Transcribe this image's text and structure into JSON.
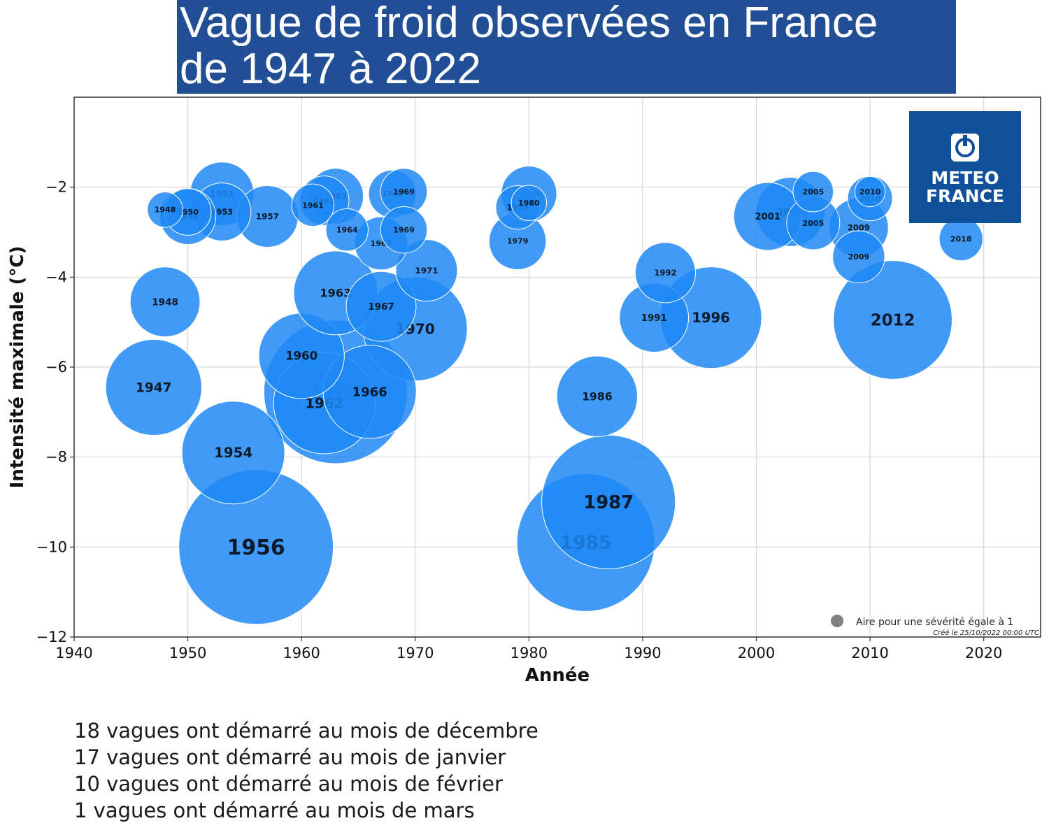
{
  "chart_data": {
    "type": "scatter",
    "title": "Vague de froid observées en France de 1947 à 2022",
    "title_lines": [
      "Vague de froid observées en France",
      "de 1947 à 2022"
    ],
    "xlabel": "Année",
    "ylabel": "Intensité maximale (°C)",
    "xlim": [
      1940,
      2025
    ],
    "ylim": [
      -12,
      0
    ],
    "xticks": [
      "1940",
      "1950",
      "1960",
      "1970",
      "1980",
      "1990",
      "2000",
      "2010",
      "2020"
    ],
    "yticks": [
      "−2",
      "−4",
      "−6",
      "−8",
      "−10",
      "−12"
    ],
    "grid": true,
    "bubble_color": "#1e88f5",
    "legend": {
      "placement": "bottom-right",
      "label": "Aire pour une sévérité égale à 1"
    },
    "creation_note": "Créé le 25/10/2022 00:00 UTC",
    "points": [
      {
        "year": 1956,
        "label": "1956",
        "x": 1956,
        "y": -10.0,
        "size": 4400
      },
      {
        "year": 1985,
        "label": "1985",
        "x": 1985,
        "y": -9.9,
        "size": 3500
      },
      {
        "year": 1963,
        "label": "1963",
        "x": 1963,
        "y": -6.55,
        "size": 3800
      },
      {
        "year": 1962,
        "label": "1962",
        "x": 1962,
        "y": -6.8,
        "size": 1900
      },
      {
        "year": 1960,
        "label": "1960",
        "x": 1960,
        "y": -5.75,
        "size": 1350
      },
      {
        "year": 1966,
        "label": "1966",
        "x": 1966,
        "y": -6.55,
        "size": 1600
      },
      {
        "year": 1970,
        "label": "1970",
        "x": 1970,
        "y": -5.15,
        "size": 2000
      },
      {
        "year": 1967,
        "label": "1967",
        "x": 1967,
        "y": -4.65,
        "size": 900
      },
      {
        "year": 1963,
        "label": "1963",
        "x": 1963,
        "y": -4.35,
        "size": 1300
      },
      {
        "year": 1971,
        "label": "1971",
        "x": 1971,
        "y": -3.85,
        "size": 700
      },
      {
        "year": 1947,
        "label": "1947",
        "x": 1947,
        "y": -6.45,
        "size": 1700
      },
      {
        "year": 1948,
        "label": "1948",
        "x": 1948,
        "y": -4.55,
        "size": 900
      },
      {
        "year": 1954,
        "label": "1954",
        "x": 1954,
        "y": -7.9,
        "size": 1950
      },
      {
        "year": 1948,
        "label": "1948",
        "x": 1948,
        "y": -2.5,
        "size": 230
      },
      {
        "year": 1950,
        "label": "1950",
        "x": 1950,
        "y": -2.65,
        "size": 580
      },
      {
        "year": 1950,
        "label": "1950",
        "x": 1950,
        "y": -2.55,
        "size": 400
      },
      {
        "year": 1953,
        "label": "1953",
        "x": 1953,
        "y": -2.55,
        "size": 620
      },
      {
        "year": 1953,
        "label": "1953",
        "x": 1953,
        "y": -2.15,
        "size": 750
      },
      {
        "year": 1957,
        "label": "1957",
        "x": 1957,
        "y": -2.65,
        "size": 700
      },
      {
        "year": 1961,
        "label": "1961",
        "x": 1961,
        "y": -2.4,
        "size": 330
      },
      {
        "year": 1962,
        "label": "1962",
        "x": 1962,
        "y": -2.3,
        "size": 450
      },
      {
        "year": 1963,
        "label": "1963",
        "x": 1963,
        "y": -2.2,
        "size": 570
      },
      {
        "year": 1964,
        "label": "1964",
        "x": 1964,
        "y": -2.95,
        "size": 330
      },
      {
        "year": 1967,
        "label": "1967",
        "x": 1967,
        "y": -3.25,
        "size": 520
      },
      {
        "year": 1968,
        "label": "1968",
        "x": 1968,
        "y": -2.15,
        "size": 420
      },
      {
        "year": 1969,
        "label": "1969",
        "x": 1969,
        "y": -2.1,
        "size": 400
      },
      {
        "year": 1969,
        "label": "1969",
        "x": 1969,
        "y": -2.95,
        "size": 400
      },
      {
        "year": 1979,
        "label": "1979",
        "x": 1979,
        "y": -2.45,
        "size": 350
      },
      {
        "year": 1980,
        "label": "1980",
        "x": 1980,
        "y": -2.15,
        "size": 570
      },
      {
        "year": 1980,
        "label": "1980",
        "x": 1980,
        "y": -2.35,
        "size": 230
      },
      {
        "year": 1979,
        "label": "1979",
        "x": 1979,
        "y": -3.2,
        "size": 600
      },
      {
        "year": 1986,
        "label": "1986",
        "x": 1986,
        "y": -6.65,
        "size": 1200
      },
      {
        "year": 1987,
        "label": "1987",
        "x": 1987,
        "y": -9.0,
        "size": 3300
      },
      {
        "year": 1991,
        "label": "1991",
        "x": 1991,
        "y": -4.9,
        "size": 880
      },
      {
        "year": 1992,
        "label": "1992",
        "x": 1992,
        "y": -3.9,
        "size": 670
      },
      {
        "year": 1996,
        "label": "1996",
        "x": 1996,
        "y": -4.9,
        "size": 1900
      },
      {
        "year": 2001,
        "label": "2001",
        "x": 2001,
        "y": -2.65,
        "size": 850
      },
      {
        "year": 2003,
        "label": "2003",
        "x": 2003,
        "y": -2.55,
        "size": 880
      },
      {
        "year": 2005,
        "label": "2005",
        "x": 2005,
        "y": -2.1,
        "size": 300
      },
      {
        "year": 2005,
        "label": "2005",
        "x": 2005,
        "y": -2.8,
        "size": 520
      },
      {
        "year": 2009,
        "label": "2009",
        "x": 2009,
        "y": -2.9,
        "size": 650
      },
      {
        "year": 2009,
        "label": "2009",
        "x": 2009,
        "y": -3.55,
        "size": 500
      },
      {
        "year": 2010,
        "label": "2010",
        "x": 2010,
        "y": -2.1,
        "size": 170
      },
      {
        "year": 2010,
        "label": "2010",
        "x": 2010,
        "y": -2.25,
        "size": 370
      },
      {
        "year": 2012,
        "label": "2012",
        "x": 2012,
        "y": -4.95,
        "size": 2600
      },
      {
        "year": 2018,
        "label": "2018",
        "x": 2018,
        "y": -3.15,
        "size": 350
      }
    ]
  },
  "notes": [
    "18 vagues ont démarré au mois de décembre",
    "17 vagues ont démarré au mois de janvier",
    "10 vagues ont démarré au mois de février",
    "1 vagues ont démarré au mois de mars"
  ],
  "logo": {
    "line1": "METEO",
    "line2": "FRANCE"
  }
}
